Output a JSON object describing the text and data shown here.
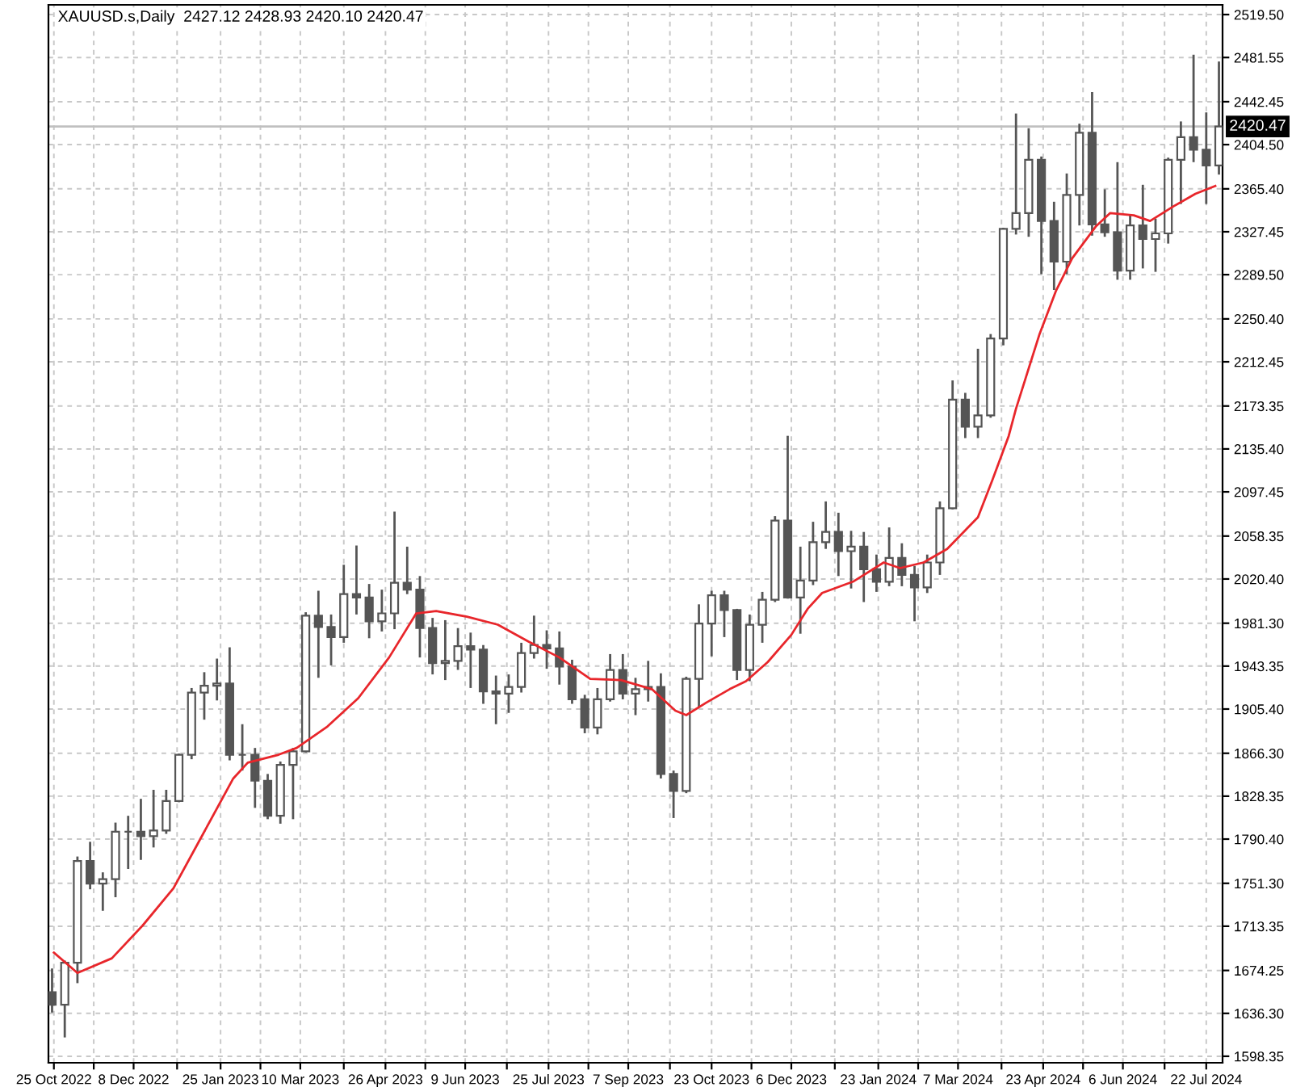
{
  "chart_data": {
    "type": "candlestick",
    "title": "XAUUSD.s,Daily  2427.12 2428.93 2420.10 2420.47",
    "series": [
      {
        "color": "#555555",
        "x": [
          "2022-10-24",
          "2022-10-31",
          "2022-11-07",
          "2022-11-14",
          "2022-11-21",
          "2022-11-28",
          "2022-12-05",
          "2022-12-12",
          "2022-12-19",
          "2022-12-26",
          "2023-01-02",
          "2023-01-09",
          "2023-01-16",
          "2023-01-23",
          "2023-01-30",
          "2023-02-06",
          "2023-02-13",
          "2023-02-20",
          "2023-02-27",
          "2023-03-06",
          "2023-03-13",
          "2023-03-20",
          "2023-03-27",
          "2023-04-03",
          "2023-04-10",
          "2023-04-17",
          "2023-04-24",
          "2023-05-01",
          "2023-05-08",
          "2023-05-15",
          "2023-05-22",
          "2023-05-29",
          "2023-06-05",
          "2023-06-12",
          "2023-06-19",
          "2023-06-26",
          "2023-07-03",
          "2023-07-10",
          "2023-07-17",
          "2023-07-24",
          "2023-07-31",
          "2023-08-07",
          "2023-08-14",
          "2023-08-21",
          "2023-08-28",
          "2023-09-04",
          "2023-09-11",
          "2023-09-18",
          "2023-09-25",
          "2023-10-02",
          "2023-10-09",
          "2023-10-16",
          "2023-10-23",
          "2023-10-30",
          "2023-11-06",
          "2023-11-13",
          "2023-11-20",
          "2023-11-27",
          "2023-12-04",
          "2023-12-11",
          "2023-12-18",
          "2023-12-25",
          "2024-01-01",
          "2024-01-08",
          "2024-01-15",
          "2024-01-22",
          "2024-01-29",
          "2024-02-05",
          "2024-02-12",
          "2024-02-19",
          "2024-02-26",
          "2024-03-04",
          "2024-03-11",
          "2024-03-18",
          "2024-03-25",
          "2024-04-01",
          "2024-04-08",
          "2024-04-15",
          "2024-04-22",
          "2024-04-29",
          "2024-05-06",
          "2024-05-13",
          "2024-05-20",
          "2024-05-27",
          "2024-06-03",
          "2024-06-10",
          "2024-06-17",
          "2024-06-24",
          "2024-07-01",
          "2024-07-08",
          "2024-07-15",
          "2024-07-22",
          "2024-07-29"
        ],
        "ohlc": [
          [
            1655,
            1675,
            1638,
            1644
          ],
          [
            1644,
            1682,
            1616,
            1681
          ],
          [
            1681,
            1774,
            1664,
            1771
          ],
          [
            1771,
            1787,
            1747,
            1751
          ],
          [
            1751,
            1760,
            1728,
            1755
          ],
          [
            1755,
            1804,
            1740,
            1797
          ],
          [
            1797,
            1810,
            1765,
            1797
          ],
          [
            1797,
            1825,
            1773,
            1793
          ],
          [
            1793,
            1833,
            1784,
            1798
          ],
          [
            1798,
            1833,
            1796,
            1824
          ],
          [
            1824,
            1865,
            1824,
            1865
          ],
          [
            1865,
            1923,
            1862,
            1920
          ],
          [
            1920,
            1937,
            1897,
            1926
          ],
          [
            1926,
            1949,
            1914,
            1928
          ],
          [
            1928,
            1959,
            1861,
            1865
          ],
          [
            1865,
            1891,
            1852,
            1865
          ],
          [
            1865,
            1870,
            1819,
            1842
          ],
          [
            1842,
            1847,
            1809,
            1811
          ],
          [
            1811,
            1858,
            1805,
            1856
          ],
          [
            1856,
            1870,
            1809,
            1868
          ],
          [
            1868,
            1990,
            1868,
            1988
          ],
          [
            1988,
            2009,
            1934,
            1978
          ],
          [
            1978,
            1988,
            1945,
            1969
          ],
          [
            1969,
            2032,
            1965,
            2007
          ],
          [
            2007,
            2049,
            1990,
            2004
          ],
          [
            2004,
            2015,
            1969,
            1983
          ],
          [
            1983,
            2010,
            1975,
            1990
          ],
          [
            1990,
            2079,
            1977,
            2017
          ],
          [
            2017,
            2048,
            2008,
            2011
          ],
          [
            2011,
            2022,
            1952,
            1977
          ],
          [
            1977,
            1985,
            1937,
            1946
          ],
          [
            1946,
            1983,
            1932,
            1948
          ],
          [
            1948,
            1976,
            1941,
            1961
          ],
          [
            1961,
            1972,
            1925,
            1958
          ],
          [
            1958,
            1961,
            1911,
            1921
          ],
          [
            1921,
            1934,
            1893,
            1919
          ],
          [
            1919,
            1935,
            1903,
            1925
          ],
          [
            1925,
            1963,
            1921,
            1955
          ],
          [
            1955,
            1987,
            1951,
            1962
          ],
          [
            1962,
            1974,
            1942,
            1959
          ],
          [
            1959,
            1973,
            1928,
            1943
          ],
          [
            1943,
            1948,
            1911,
            1914
          ],
          [
            1914,
            1917,
            1885,
            1889
          ],
          [
            1889,
            1923,
            1884,
            1914
          ],
          [
            1914,
            1953,
            1913,
            1940
          ],
          [
            1940,
            1953,
            1915,
            1919
          ],
          [
            1919,
            1932,
            1901,
            1923
          ],
          [
            1923,
            1947,
            1913,
            1925
          ],
          [
            1925,
            1936,
            1845,
            1848
          ],
          [
            1848,
            1850,
            1810,
            1833
          ],
          [
            1833,
            1933,
            1832,
            1932
          ],
          [
            1932,
            1997,
            1908,
            1981
          ],
          [
            1981,
            2009,
            1953,
            2006
          ],
          [
            2006,
            2009,
            1970,
            1993
          ],
          [
            1993,
            1993,
            1932,
            1940
          ],
          [
            1940,
            1988,
            1931,
            1980
          ],
          [
            1980,
            2008,
            1965,
            2002
          ],
          [
            2002,
            2075,
            2001,
            2072
          ],
          [
            2072,
            2146,
            2004,
            2004
          ],
          [
            2004,
            2048,
            1973,
            2019
          ],
          [
            2019,
            2070,
            2016,
            2053
          ],
          [
            2053,
            2088,
            2048,
            2062
          ],
          [
            2062,
            2078,
            2024,
            2045
          ],
          [
            2045,
            2062,
            2013,
            2049
          ],
          [
            2049,
            2061,
            2001,
            2029
          ],
          [
            2029,
            2041,
            2010,
            2018
          ],
          [
            2018,
            2065,
            2015,
            2039
          ],
          [
            2039,
            2051,
            2015,
            2024
          ],
          [
            2024,
            2031,
            1984,
            2013
          ],
          [
            2013,
            2041,
            2009,
            2035
          ],
          [
            2035,
            2088,
            2025,
            2083
          ],
          [
            2083,
            2195,
            2083,
            2179
          ],
          [
            2179,
            2184,
            2146,
            2155
          ],
          [
            2155,
            2223,
            2146,
            2165
          ],
          [
            2165,
            2236,
            2164,
            2233
          ],
          [
            2233,
            2330,
            2228,
            2330
          ],
          [
            2330,
            2431,
            2326,
            2344
          ],
          [
            2344,
            2418,
            2324,
            2391
          ],
          [
            2391,
            2393,
            2291,
            2337
          ],
          [
            2337,
            2353,
            2277,
            2301
          ],
          [
            2301,
            2378,
            2291,
            2360
          ],
          [
            2360,
            2422,
            2334,
            2415
          ],
          [
            2415,
            2450,
            2325,
            2334
          ],
          [
            2334,
            2364,
            2324,
            2327
          ],
          [
            2327,
            2388,
            2286,
            2293
          ],
          [
            2293,
            2342,
            2286,
            2333
          ],
          [
            2333,
            2368,
            2296,
            2321
          ],
          [
            2321,
            2338,
            2293,
            2326
          ],
          [
            2326,
            2392,
            2318,
            2391
          ],
          [
            2391,
            2424,
            2353,
            2411
          ],
          [
            2411,
            2483,
            2390,
            2400
          ],
          [
            2400,
            2432,
            2353,
            2386
          ],
          [
            2386,
            2477,
            2379,
            2420.47
          ]
        ]
      },
      {
        "type": "line",
        "color": "#e8262b",
        "x": [
          "2022-10-25",
          "2022-11-07",
          "2022-11-26",
          "2022-12-13",
          "2022-12-30",
          "2023-01-15",
          "2023-02-01",
          "2023-02-09",
          "2023-02-26",
          "2023-03-08",
          "2023-03-25",
          "2023-04-11",
          "2023-04-28",
          "2023-05-13",
          "2023-05-24",
          "2023-06-10",
          "2023-06-27",
          "2023-07-14",
          "2023-07-31",
          "2023-08-17",
          "2023-09-03",
          "2023-09-20",
          "2023-10-03",
          "2023-10-09",
          "2023-10-20",
          "2023-11-02",
          "2023-11-11",
          "2023-11-23",
          "2023-12-06",
          "2023-12-15",
          "2023-12-23",
          "2024-01-09",
          "2024-01-26",
          "2024-02-04",
          "2024-02-17",
          "2024-03-01",
          "2024-03-18",
          "2024-03-26",
          "2024-04-04",
          "2024-04-08",
          "2024-04-21",
          "2024-04-30",
          "2024-05-09",
          "2024-05-22",
          "2024-05-30",
          "2024-06-12",
          "2024-06-21",
          "2024-07-04",
          "2024-07-16",
          "2024-07-27"
        ],
        "values": [
          1690,
          1672,
          1685,
          1714,
          1747,
          1794,
          1844,
          1858,
          1865,
          1871,
          1890,
          1915,
          1951,
          1990,
          1992,
          1987,
          1980,
          1965,
          1951,
          1932,
          1931,
          1923,
          1904,
          1900,
          1911,
          1923,
          1930,
          1947,
          1971,
          1994,
          2008,
          2018,
          2035,
          2030,
          2035,
          2047,
          2075,
          2108,
          2147,
          2171,
          2237,
          2275,
          2304,
          2332,
          2344,
          2342,
          2337,
          2350,
          2361,
          2368
        ]
      }
    ],
    "xlim": [
      "2022-10-22",
      "2024-07-31"
    ],
    "ylim": [
      1592.6,
      2528.1
    ],
    "xticks": [
      {
        "value": "2022-10-25",
        "label": "25 Oct 2022"
      },
      {
        "value": "2022-11-16",
        "label": null
      },
      {
        "value": "2022-12-08",
        "label": "8 Dec 2022"
      },
      {
        "value": "2023-01-01",
        "label": null
      },
      {
        "value": "2023-01-25",
        "label": "25 Jan 2023"
      },
      {
        "value": "2023-02-16",
        "label": null
      },
      {
        "value": "2023-03-10",
        "label": "10 Mar 2023"
      },
      {
        "value": "2023-04-03",
        "label": null
      },
      {
        "value": "2023-04-26",
        "label": "26 Apr 2023"
      },
      {
        "value": "2023-05-18",
        "label": null
      },
      {
        "value": "2023-06-09",
        "label": "9 Jun 2023"
      },
      {
        "value": "2023-07-02",
        "label": null
      },
      {
        "value": "2023-07-25",
        "label": "25 Jul 2023"
      },
      {
        "value": "2023-08-16",
        "label": null
      },
      {
        "value": "2023-09-07",
        "label": "7 Sep 2023"
      },
      {
        "value": "2023-09-30",
        "label": null
      },
      {
        "value": "2023-10-23",
        "label": "23 Oct 2023"
      },
      {
        "value": "2023-11-14",
        "label": null
      },
      {
        "value": "2023-12-06",
        "label": "6 Dec 2023"
      },
      {
        "value": "2023-12-30",
        "label": null
      },
      {
        "value": "2024-01-23",
        "label": "23 Jan 2024"
      },
      {
        "value": "2024-02-14",
        "label": null
      },
      {
        "value": "2024-03-07",
        "label": "7 Mar 2024"
      },
      {
        "value": "2024-03-31",
        "label": null
      },
      {
        "value": "2024-04-23",
        "label": "23 Apr 2024"
      },
      {
        "value": "2024-05-15",
        "label": null
      },
      {
        "value": "2024-06-06",
        "label": "6 Jun 2024"
      },
      {
        "value": "2024-06-29",
        "label": null
      },
      {
        "value": "2024-07-22",
        "label": "22 Jul 2024"
      }
    ],
    "yticks": [
      {
        "value": 1598.35,
        "label": "1598.35"
      },
      {
        "value": 1636.3,
        "label": "1636.30"
      },
      {
        "value": 1674.25,
        "label": "1674.25"
      },
      {
        "value": 1713.35,
        "label": "1713.35"
      },
      {
        "value": 1751.3,
        "label": "1751.30"
      },
      {
        "value": 1790.4,
        "label": "1790.40"
      },
      {
        "value": 1828.35,
        "label": "1828.35"
      },
      {
        "value": 1866.3,
        "label": "1866.30"
      },
      {
        "value": 1905.4,
        "label": "1905.40"
      },
      {
        "value": 1943.35,
        "label": "1943.35"
      },
      {
        "value": 1981.3,
        "label": "1981.30"
      },
      {
        "value": 2020.4,
        "label": "2020.40"
      },
      {
        "value": 2058.35,
        "label": "2058.35"
      },
      {
        "value": 2097.45,
        "label": "2097.45"
      },
      {
        "value": 2135.4,
        "label": "2135.40"
      },
      {
        "value": 2173.35,
        "label": "2173.35"
      },
      {
        "value": 2212.45,
        "label": "2212.45"
      },
      {
        "value": 2250.4,
        "label": "2250.40"
      },
      {
        "value": 2289.5,
        "label": "2289.50"
      },
      {
        "value": 2327.45,
        "label": "2327.45"
      },
      {
        "value": 2365.4,
        "label": "2365.40"
      },
      {
        "value": 2404.5,
        "label": "2404.50"
      },
      {
        "value": 2442.45,
        "label": "2442.45"
      },
      {
        "value": 2481.55,
        "label": "2481.55"
      },
      {
        "value": 2519.5,
        "label": "2519.50"
      }
    ],
    "grid": true,
    "ref_lines": [
      {
        "axis": "y",
        "value": 2420.47,
        "label": "2420.47",
        "color": "#c0c0c0"
      }
    ]
  }
}
